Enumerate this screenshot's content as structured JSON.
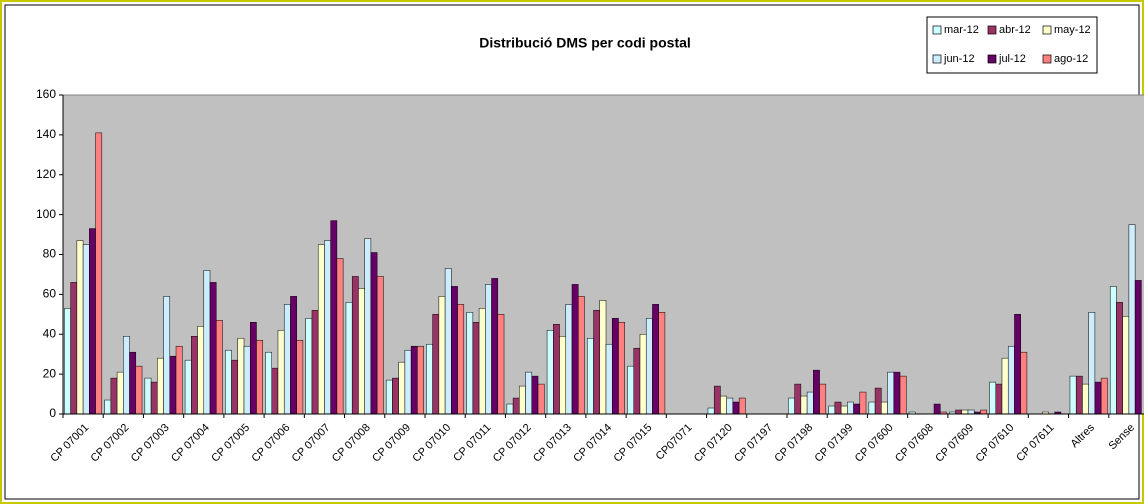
{
  "chart_data": {
    "type": "bar",
    "title": "Distribució DMS per codi postal",
    "categories": [
      "CP 07001",
      "CP 07002",
      "CP 07003",
      "CP 07004",
      "CP 07005",
      "CP 07006",
      "CP 07007",
      "CP 07008",
      "CP 07009",
      "CP 07010",
      "CP 07011",
      "CP 07012",
      "CP 07013",
      "CP 07014",
      "CP 07015",
      "CP07071",
      "CP 07120",
      "CP 07197",
      "CP 07198",
      "CP 07199",
      "CP 07600",
      "CP 07608",
      "CP 07609",
      "CP 07610",
      "CP 07611",
      "Altres",
      "Sense"
    ],
    "series": [
      {
        "name": "mar-12",
        "color": "#ccffff",
        "values": [
          53,
          7,
          18,
          27,
          32,
          31,
          48,
          56,
          17,
          35,
          51,
          5,
          42,
          38,
          24,
          0,
          3,
          0,
          8,
          4,
          6,
          1,
          1,
          16,
          0,
          19,
          64
        ]
      },
      {
        "name": "abr-12",
        "color": "#993366",
        "values": [
          66,
          18,
          16,
          39,
          27,
          23,
          52,
          69,
          18,
          50,
          46,
          8,
          45,
          52,
          33,
          0,
          14,
          0,
          15,
          6,
          13,
          0,
          2,
          15,
          0,
          19,
          56
        ]
      },
      {
        "name": "may-12",
        "color": "#ffffcc",
        "values": [
          87,
          21,
          28,
          44,
          38,
          42,
          85,
          63,
          26,
          59,
          53,
          14,
          39,
          57,
          40,
          0,
          9,
          0,
          9,
          4,
          6,
          0,
          2,
          28,
          1,
          15,
          49
        ]
      },
      {
        "name": "jun-12",
        "color": "#ccecff",
        "values": [
          85,
          39,
          59,
          72,
          34,
          55,
          87,
          88,
          32,
          73,
          65,
          21,
          55,
          35,
          48,
          0,
          8,
          0,
          11,
          6,
          21,
          0,
          2,
          34,
          0,
          51,
          95
        ]
      },
      {
        "name": "jul-12",
        "color": "#660066",
        "values": [
          93,
          31,
          29,
          66,
          46,
          59,
          97,
          81,
          34,
          64,
          68,
          19,
          65,
          48,
          55,
          0,
          6,
          0,
          22,
          5,
          21,
          5,
          1,
          50,
          1,
          16,
          67
        ]
      },
      {
        "name": "ago-12",
        "color": "#ff8080",
        "values": [
          141,
          24,
          34,
          47,
          37,
          37,
          78,
          69,
          34,
          55,
          50,
          15,
          59,
          46,
          51,
          0,
          8,
          0,
          15,
          11,
          19,
          1,
          2,
          31,
          0,
          18,
          null
        ]
      }
    ],
    "ylim": [
      0,
      160
    ],
    "yticks": [
      0,
      20,
      40,
      60,
      80,
      100,
      120,
      140,
      160
    ],
    "legend": "top-right",
    "plot_background": "#c0c0c0"
  }
}
